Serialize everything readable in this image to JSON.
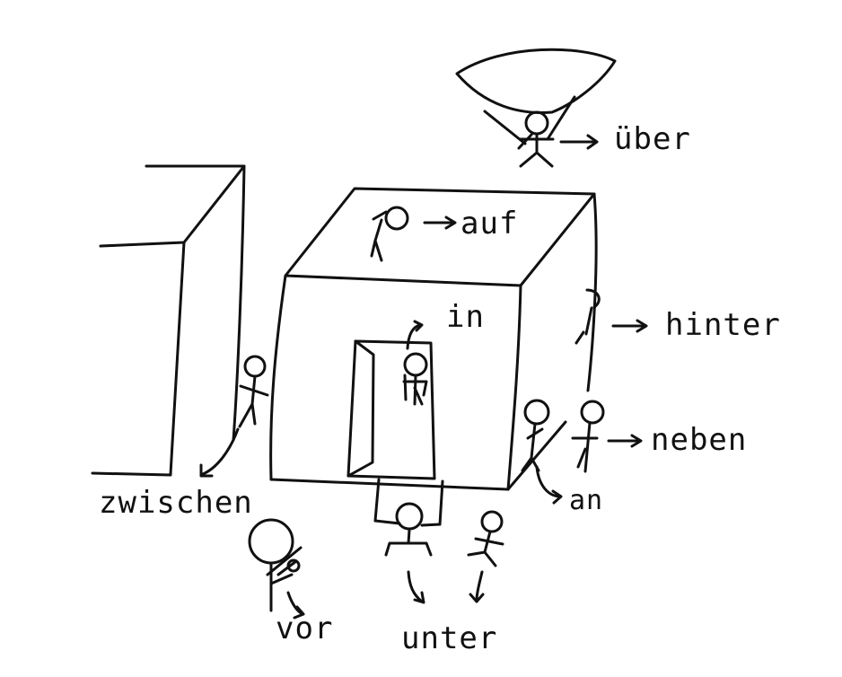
{
  "labels": {
    "ueber": "über",
    "auf": "auf",
    "hinter": "hinter",
    "in": "in",
    "neben": "neben",
    "an": "an",
    "zwischen": "zwischen",
    "vor": "vor",
    "unter": "unter"
  }
}
